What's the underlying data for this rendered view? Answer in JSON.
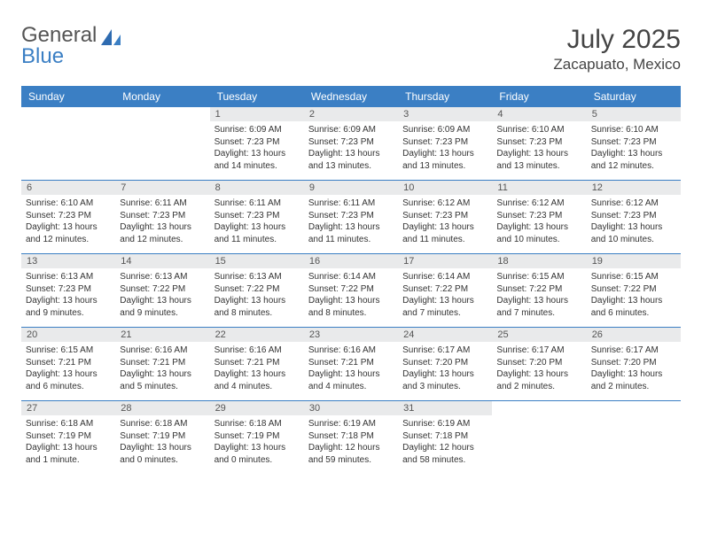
{
  "logo": {
    "text1": "General",
    "text2": "Blue"
  },
  "title": "July 2025",
  "location": "Zacapuato, Mexico",
  "colors": {
    "header_bg": "#3b7fc4",
    "header_text": "#ffffff",
    "daynum_bg": "#e9eaeb",
    "border": "#3b7fc4",
    "body_text": "#333333"
  },
  "day_names": [
    "Sunday",
    "Monday",
    "Tuesday",
    "Wednesday",
    "Thursday",
    "Friday",
    "Saturday"
  ],
  "weeks": [
    [
      {
        "empty": true
      },
      {
        "empty": true
      },
      {
        "num": "1",
        "sunrise": "Sunrise: 6:09 AM",
        "sunset": "Sunset: 7:23 PM",
        "daylight1": "Daylight: 13 hours",
        "daylight2": "and 14 minutes."
      },
      {
        "num": "2",
        "sunrise": "Sunrise: 6:09 AM",
        "sunset": "Sunset: 7:23 PM",
        "daylight1": "Daylight: 13 hours",
        "daylight2": "and 13 minutes."
      },
      {
        "num": "3",
        "sunrise": "Sunrise: 6:09 AM",
        "sunset": "Sunset: 7:23 PM",
        "daylight1": "Daylight: 13 hours",
        "daylight2": "and 13 minutes."
      },
      {
        "num": "4",
        "sunrise": "Sunrise: 6:10 AM",
        "sunset": "Sunset: 7:23 PM",
        "daylight1": "Daylight: 13 hours",
        "daylight2": "and 13 minutes."
      },
      {
        "num": "5",
        "sunrise": "Sunrise: 6:10 AM",
        "sunset": "Sunset: 7:23 PM",
        "daylight1": "Daylight: 13 hours",
        "daylight2": "and 12 minutes."
      }
    ],
    [
      {
        "num": "6",
        "sunrise": "Sunrise: 6:10 AM",
        "sunset": "Sunset: 7:23 PM",
        "daylight1": "Daylight: 13 hours",
        "daylight2": "and 12 minutes."
      },
      {
        "num": "7",
        "sunrise": "Sunrise: 6:11 AM",
        "sunset": "Sunset: 7:23 PM",
        "daylight1": "Daylight: 13 hours",
        "daylight2": "and 12 minutes."
      },
      {
        "num": "8",
        "sunrise": "Sunrise: 6:11 AM",
        "sunset": "Sunset: 7:23 PM",
        "daylight1": "Daylight: 13 hours",
        "daylight2": "and 11 minutes."
      },
      {
        "num": "9",
        "sunrise": "Sunrise: 6:11 AM",
        "sunset": "Sunset: 7:23 PM",
        "daylight1": "Daylight: 13 hours",
        "daylight2": "and 11 minutes."
      },
      {
        "num": "10",
        "sunrise": "Sunrise: 6:12 AM",
        "sunset": "Sunset: 7:23 PM",
        "daylight1": "Daylight: 13 hours",
        "daylight2": "and 11 minutes."
      },
      {
        "num": "11",
        "sunrise": "Sunrise: 6:12 AM",
        "sunset": "Sunset: 7:23 PM",
        "daylight1": "Daylight: 13 hours",
        "daylight2": "and 10 minutes."
      },
      {
        "num": "12",
        "sunrise": "Sunrise: 6:12 AM",
        "sunset": "Sunset: 7:23 PM",
        "daylight1": "Daylight: 13 hours",
        "daylight2": "and 10 minutes."
      }
    ],
    [
      {
        "num": "13",
        "sunrise": "Sunrise: 6:13 AM",
        "sunset": "Sunset: 7:23 PM",
        "daylight1": "Daylight: 13 hours",
        "daylight2": "and 9 minutes."
      },
      {
        "num": "14",
        "sunrise": "Sunrise: 6:13 AM",
        "sunset": "Sunset: 7:22 PM",
        "daylight1": "Daylight: 13 hours",
        "daylight2": "and 9 minutes."
      },
      {
        "num": "15",
        "sunrise": "Sunrise: 6:13 AM",
        "sunset": "Sunset: 7:22 PM",
        "daylight1": "Daylight: 13 hours",
        "daylight2": "and 8 minutes."
      },
      {
        "num": "16",
        "sunrise": "Sunrise: 6:14 AM",
        "sunset": "Sunset: 7:22 PM",
        "daylight1": "Daylight: 13 hours",
        "daylight2": "and 8 minutes."
      },
      {
        "num": "17",
        "sunrise": "Sunrise: 6:14 AM",
        "sunset": "Sunset: 7:22 PM",
        "daylight1": "Daylight: 13 hours",
        "daylight2": "and 7 minutes."
      },
      {
        "num": "18",
        "sunrise": "Sunrise: 6:15 AM",
        "sunset": "Sunset: 7:22 PM",
        "daylight1": "Daylight: 13 hours",
        "daylight2": "and 7 minutes."
      },
      {
        "num": "19",
        "sunrise": "Sunrise: 6:15 AM",
        "sunset": "Sunset: 7:22 PM",
        "daylight1": "Daylight: 13 hours",
        "daylight2": "and 6 minutes."
      }
    ],
    [
      {
        "num": "20",
        "sunrise": "Sunrise: 6:15 AM",
        "sunset": "Sunset: 7:21 PM",
        "daylight1": "Daylight: 13 hours",
        "daylight2": "and 6 minutes."
      },
      {
        "num": "21",
        "sunrise": "Sunrise: 6:16 AM",
        "sunset": "Sunset: 7:21 PM",
        "daylight1": "Daylight: 13 hours",
        "daylight2": "and 5 minutes."
      },
      {
        "num": "22",
        "sunrise": "Sunrise: 6:16 AM",
        "sunset": "Sunset: 7:21 PM",
        "daylight1": "Daylight: 13 hours",
        "daylight2": "and 4 minutes."
      },
      {
        "num": "23",
        "sunrise": "Sunrise: 6:16 AM",
        "sunset": "Sunset: 7:21 PM",
        "daylight1": "Daylight: 13 hours",
        "daylight2": "and 4 minutes."
      },
      {
        "num": "24",
        "sunrise": "Sunrise: 6:17 AM",
        "sunset": "Sunset: 7:20 PM",
        "daylight1": "Daylight: 13 hours",
        "daylight2": "and 3 minutes."
      },
      {
        "num": "25",
        "sunrise": "Sunrise: 6:17 AM",
        "sunset": "Sunset: 7:20 PM",
        "daylight1": "Daylight: 13 hours",
        "daylight2": "and 2 minutes."
      },
      {
        "num": "26",
        "sunrise": "Sunrise: 6:17 AM",
        "sunset": "Sunset: 7:20 PM",
        "daylight1": "Daylight: 13 hours",
        "daylight2": "and 2 minutes."
      }
    ],
    [
      {
        "num": "27",
        "sunrise": "Sunrise: 6:18 AM",
        "sunset": "Sunset: 7:19 PM",
        "daylight1": "Daylight: 13 hours",
        "daylight2": "and 1 minute."
      },
      {
        "num": "28",
        "sunrise": "Sunrise: 6:18 AM",
        "sunset": "Sunset: 7:19 PM",
        "daylight1": "Daylight: 13 hours",
        "daylight2": "and 0 minutes."
      },
      {
        "num": "29",
        "sunrise": "Sunrise: 6:18 AM",
        "sunset": "Sunset: 7:19 PM",
        "daylight1": "Daylight: 13 hours",
        "daylight2": "and 0 minutes."
      },
      {
        "num": "30",
        "sunrise": "Sunrise: 6:19 AM",
        "sunset": "Sunset: 7:18 PM",
        "daylight1": "Daylight: 12 hours",
        "daylight2": "and 59 minutes."
      },
      {
        "num": "31",
        "sunrise": "Sunrise: 6:19 AM",
        "sunset": "Sunset: 7:18 PM",
        "daylight1": "Daylight: 12 hours",
        "daylight2": "and 58 minutes."
      },
      {
        "empty": true
      },
      {
        "empty": true
      }
    ]
  ]
}
